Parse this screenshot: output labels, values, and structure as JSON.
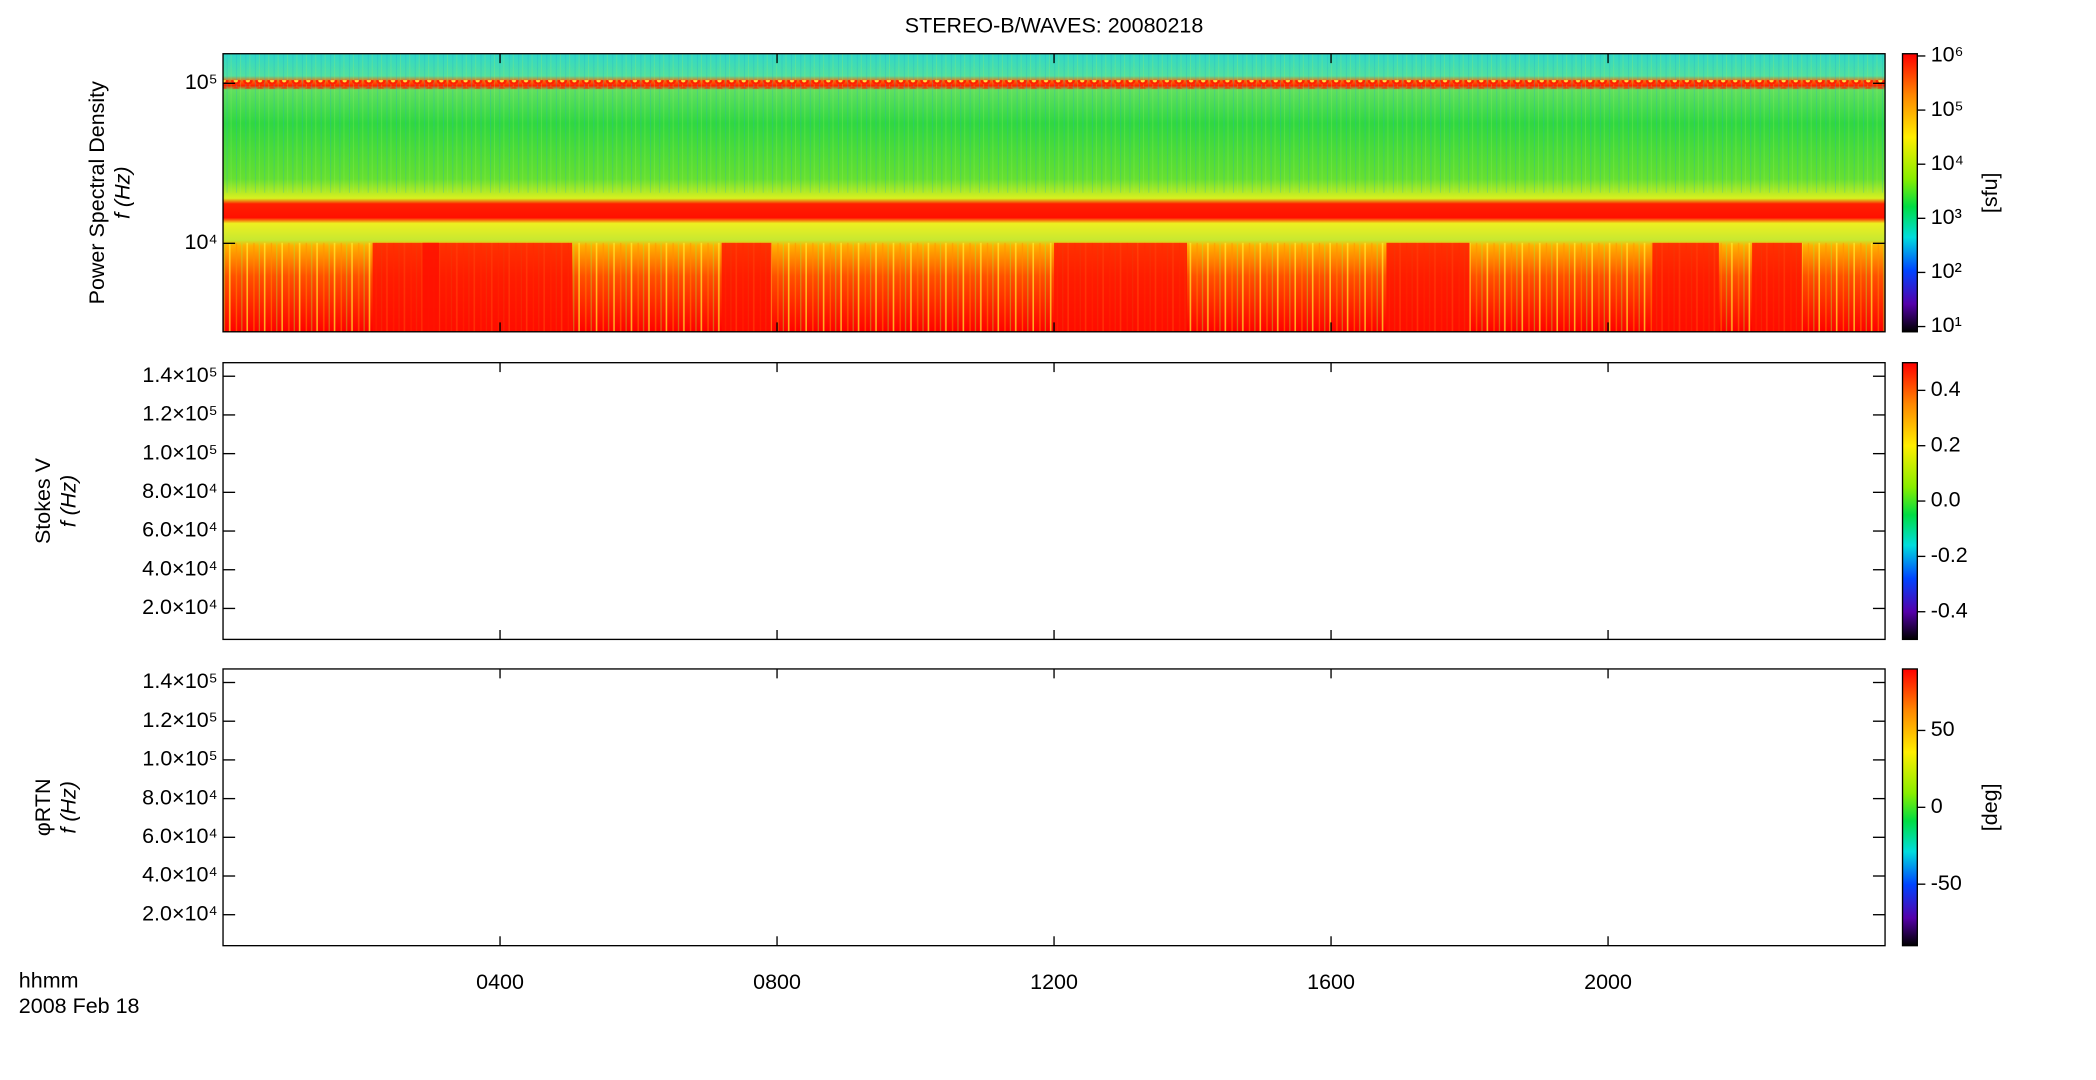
{
  "chart_data": [
    {
      "type": "heatmap",
      "title": "STEREO-B/WAVES: 20080218",
      "ylabel": [
        "Power Spectral Density",
        "f (Hz)"
      ],
      "ylog": true,
      "ylim": [
        2800,
        153000
      ],
      "yticks": [
        {
          "value": 10000,
          "label": "10⁴"
        },
        {
          "value": 100000,
          "label": "10⁵"
        }
      ],
      "colorbar": {
        "log": true,
        "lim": [
          8,
          1100000
        ],
        "ticks": [
          {
            "value": 10,
            "label": "10¹"
          },
          {
            "value": 100,
            "label": "10²"
          },
          {
            "value": 1000,
            "label": "10³"
          },
          {
            "value": 10000,
            "label": "10⁴"
          },
          {
            "value": 100000,
            "label": "10⁵"
          },
          {
            "value": 1000000,
            "label": "10⁶"
          }
        ],
        "label": "[sfu]"
      }
    },
    {
      "type": "heatmap",
      "ylabel": [
        "Stokes V",
        "f (Hz)"
      ],
      "ylog": false,
      "ylim": [
        4000,
        147000
      ],
      "yticks": [
        {
          "value": 20000,
          "label": "2.0×10⁴"
        },
        {
          "value": 40000,
          "label": "4.0×10⁴"
        },
        {
          "value": 60000,
          "label": "6.0×10⁴"
        },
        {
          "value": 80000,
          "label": "8.0×10⁴"
        },
        {
          "value": 100000,
          "label": "1.0×10⁵"
        },
        {
          "value": 120000,
          "label": "1.2×10⁵"
        },
        {
          "value": 140000,
          "label": "1.4×10⁵"
        }
      ],
      "colorbar": {
        "log": false,
        "lim": [
          -0.5,
          0.5
        ],
        "ticks": [
          -0.4,
          -0.2,
          {
            "value": 0,
            "label": "0.0"
          },
          0.2,
          0.4
        ]
      }
    },
    {
      "type": "heatmap",
      "ylabel": [
        "φRTN",
        "f (Hz)"
      ],
      "ylog": false,
      "ylim": [
        4000,
        147000
      ],
      "yticks": [
        {
          "value": 20000,
          "label": "2.0×10⁴"
        },
        {
          "value": 40000,
          "label": "4.0×10⁴"
        },
        {
          "value": 60000,
          "label": "6.0×10⁴"
        },
        {
          "value": 80000,
          "label": "8.0×10⁴"
        },
        {
          "value": 100000,
          "label": "1.0×10⁵"
        },
        {
          "value": 120000,
          "label": "1.2×10⁵"
        },
        {
          "value": 140000,
          "label": "1.4×10⁵"
        }
      ],
      "colorbar": {
        "log": false,
        "lim": [
          -90,
          90
        ],
        "ticks": [
          -50,
          0,
          50
        ],
        "label": "[deg]"
      },
      "xlim": [
        0,
        24
      ],
      "xticks": [
        {
          "value": 4,
          "label": "0400"
        },
        {
          "value": 8,
          "label": "0800"
        },
        {
          "value": 12,
          "label": "1200"
        },
        {
          "value": 16,
          "label": "1600"
        },
        {
          "value": 20,
          "label": "2000"
        }
      ],
      "xlabel": "hhmm",
      "date": "2008 Feb 18"
    }
  ]
}
